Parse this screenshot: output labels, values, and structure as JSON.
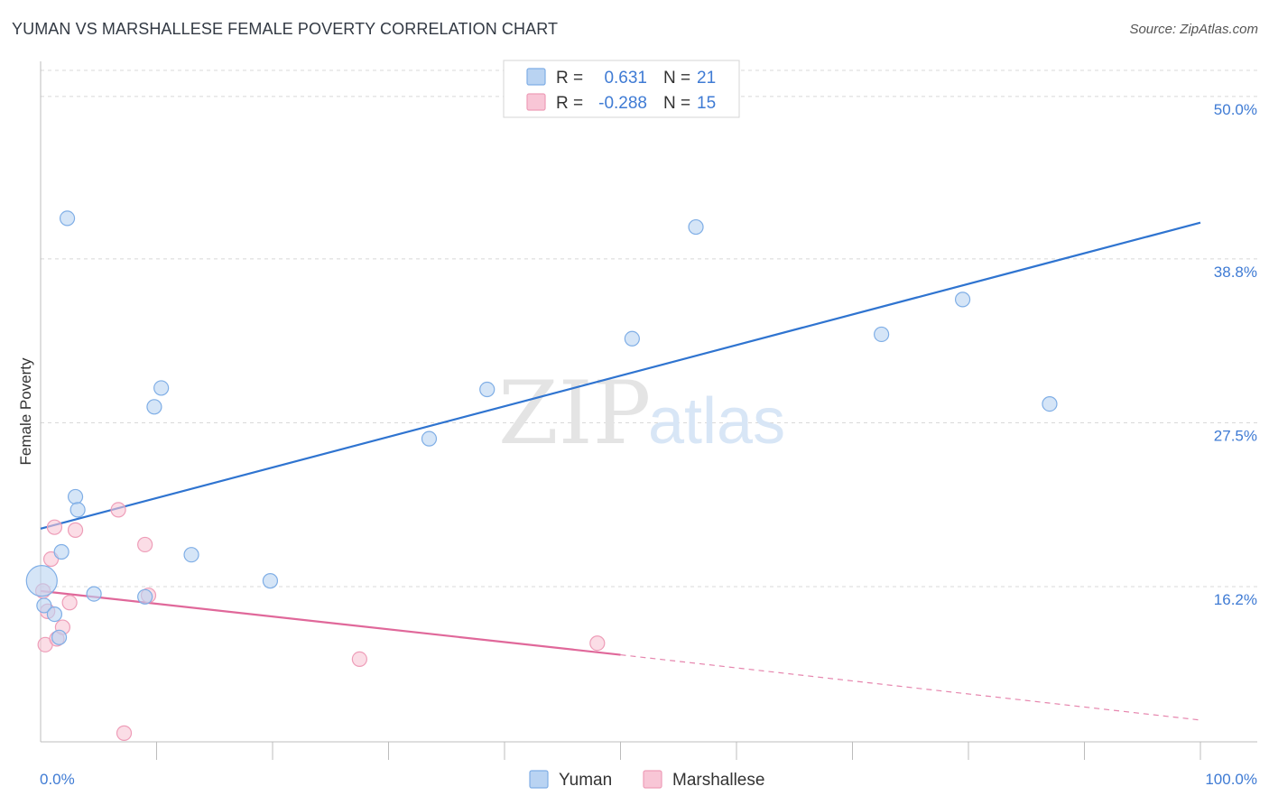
{
  "title": "YUMAN VS MARSHALLESE FEMALE POVERTY CORRELATION CHART",
  "source": "Source: ZipAtlas.com",
  "watermark": {
    "zip": "ZIP",
    "atlas": "atlas"
  },
  "colors": {
    "yuman_fill": "#b9d3f2",
    "yuman_stroke": "#7faee6",
    "yuman_line": "#2f74d0",
    "marsh_fill": "#f8c6d6",
    "marsh_stroke": "#ee9db8",
    "marsh_line": "#e0689a",
    "grid": "#d8d8d8",
    "tick_text": "#3f7bd4"
  },
  "legend": {
    "r_label": "R =",
    "n_label": "N =",
    "yuman": {
      "r": "0.631",
      "n": "21"
    },
    "marshallese": {
      "r": "-0.288",
      "n": "15"
    }
  },
  "chart_data": {
    "type": "scatter",
    "title": "YUMAN VS MARSHALLESE FEMALE POVERTY CORRELATION CHART",
    "xlabel": "",
    "ylabel": "Female Poverty",
    "xlim": [
      0,
      100
    ],
    "ylim": [
      5.5,
      51.8
    ],
    "x_tick_labels": [
      "0.0%",
      "100.0%"
    ],
    "y_ticks": [
      16.2,
      27.5,
      38.8,
      50.0
    ],
    "y_tick_labels": [
      "16.2%",
      "27.5%",
      "38.8%",
      "50.0%"
    ],
    "grid": true,
    "legend_position": "bottom-center",
    "series": [
      {
        "name": "Yuman",
        "points": [
          {
            "x": 0.1,
            "y": 16.6,
            "size": "large"
          },
          {
            "x": 0.3,
            "y": 14.9
          },
          {
            "x": 1.2,
            "y": 14.3
          },
          {
            "x": 1.6,
            "y": 12.7
          },
          {
            "x": 1.8,
            "y": 18.6
          },
          {
            "x": 2.3,
            "y": 41.6
          },
          {
            "x": 3.0,
            "y": 22.4
          },
          {
            "x": 3.2,
            "y": 21.5
          },
          {
            "x": 4.6,
            "y": 15.7
          },
          {
            "x": 9.0,
            "y": 15.5
          },
          {
            "x": 9.8,
            "y": 28.6
          },
          {
            "x": 10.4,
            "y": 29.9
          },
          {
            "x": 13.0,
            "y": 18.4
          },
          {
            "x": 19.8,
            "y": 16.6
          },
          {
            "x": 33.5,
            "y": 26.4
          },
          {
            "x": 38.5,
            "y": 29.8
          },
          {
            "x": 51.0,
            "y": 33.3
          },
          {
            "x": 56.5,
            "y": 41.0
          },
          {
            "x": 72.5,
            "y": 33.6
          },
          {
            "x": 79.5,
            "y": 36.0
          },
          {
            "x": 87.0,
            "y": 28.8
          }
        ],
        "trend": {
          "x0": 0,
          "y0": 20.2,
          "x1": 100,
          "y1": 41.3
        }
      },
      {
        "name": "Marshallese",
        "points": [
          {
            "x": 0.2,
            "y": 15.9
          },
          {
            "x": 0.4,
            "y": 12.2
          },
          {
            "x": 0.6,
            "y": 14.5
          },
          {
            "x": 0.9,
            "y": 18.1
          },
          {
            "x": 1.2,
            "y": 20.3
          },
          {
            "x": 1.4,
            "y": 12.6
          },
          {
            "x": 1.9,
            "y": 13.4
          },
          {
            "x": 2.5,
            "y": 15.1
          },
          {
            "x": 3.0,
            "y": 20.1
          },
          {
            "x": 6.7,
            "y": 21.5
          },
          {
            "x": 7.2,
            "y": 6.1
          },
          {
            "x": 9.0,
            "y": 19.1
          },
          {
            "x": 9.3,
            "y": 15.6
          },
          {
            "x": 27.5,
            "y": 11.2
          },
          {
            "x": 48.0,
            "y": 12.3
          }
        ],
        "trend": {
          "x0": 0,
          "y0": 15.9,
          "x1": 50,
          "y1": 11.5,
          "dashed_to_x": 100,
          "dashed_to_y": 7.0
        }
      }
    ]
  }
}
